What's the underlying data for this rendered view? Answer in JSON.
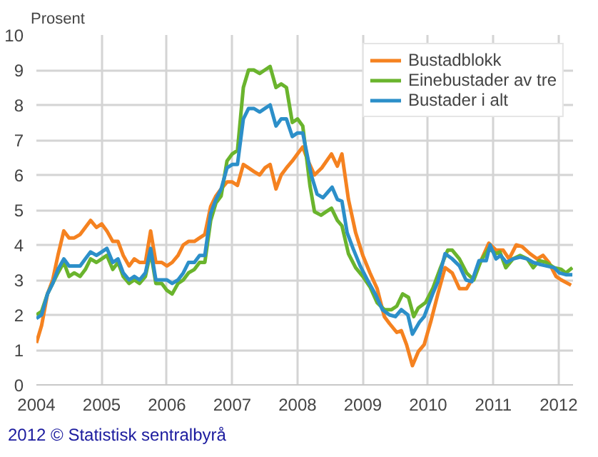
{
  "chart_data": {
    "type": "line",
    "ylabel": "Prosent",
    "annotations": [
      "2012 © Statistisk sentralbyrå"
    ],
    "xlim": [
      2004,
      2012.22
    ],
    "xticks": [
      2004,
      2005,
      2006,
      2007,
      2008,
      2009,
      2010,
      2011,
      2012
    ],
    "ylim": [
      0,
      10
    ],
    "yticks": [
      0,
      1,
      2,
      3,
      4,
      5,
      6,
      7,
      8,
      9,
      10
    ],
    "grid": true,
    "legend": "top right",
    "marker": "none",
    "line_style": "solid",
    "series": [
      {
        "name": "Bustadblokk",
        "color": "#f58220",
        "x": [
          2004,
          2004.08,
          2004.17,
          2004.25,
          2004.33,
          2004.42,
          2004.5,
          2004.58,
          2004.67,
          2004.75,
          2004.83,
          2004.92,
          2005,
          2005.08,
          2005.17,
          2005.25,
          2005.33,
          2005.42,
          2005.5,
          2005.58,
          2005.67,
          2005.75,
          2005.83,
          2005.92,
          2006,
          2006.08,
          2006.17,
          2006.25,
          2006.33,
          2006.42,
          2006.5,
          2006.58,
          2006.67,
          2006.75,
          2006.83,
          2006.92,
          2007,
          2007.08,
          2007.17,
          2007.25,
          2007.33,
          2007.42,
          2007.5,
          2007.58,
          2007.67,
          2007.75,
          2007.83,
          2007.92,
          2008,
          2008.08,
          2008.15,
          2008.26,
          2008.37,
          2008.52,
          2008.61,
          2008.68,
          2008.78,
          2008.89,
          2009,
          2009.11,
          2009.22,
          2009.33,
          2009.41,
          2009.52,
          2009.59,
          2009.67,
          2009.76,
          2009.85,
          2009.94,
          2010.04,
          2010.15,
          2010.26,
          2010.37,
          2010.48,
          2010.59,
          2010.7,
          2010.81,
          2010.93,
          2011.04,
          2011.15,
          2011.24,
          2011.35,
          2011.44,
          2011.56,
          2011.67,
          2011.76,
          2011.85,
          2011.96,
          2012.04,
          2012.19
        ],
        "values": [
          1.2,
          1.7,
          2.6,
          3.0,
          3.7,
          4.4,
          4.2,
          4.2,
          4.3,
          4.5,
          4.7,
          4.5,
          4.6,
          4.4,
          4.1,
          4.1,
          3.7,
          3.4,
          3.6,
          3.5,
          3.5,
          4.4,
          3.5,
          3.5,
          3.4,
          3.5,
          3.7,
          4.0,
          4.1,
          4.1,
          4.2,
          4.3,
          5.1,
          5.4,
          5.6,
          5.8,
          5.8,
          5.7,
          6.3,
          6.2,
          6.1,
          6.0,
          6.2,
          6.3,
          5.6,
          6.0,
          6.2,
          6.4,
          6.6,
          6.8,
          6.45,
          6.0,
          6.2,
          6.6,
          6.25,
          6.6,
          5.3,
          4.35,
          3.7,
          3.2,
          2.75,
          1.95,
          1.75,
          1.5,
          1.55,
          1.15,
          0.55,
          0.95,
          1.15,
          1.8,
          2.6,
          3.35,
          3.2,
          2.75,
          2.75,
          3.1,
          3.55,
          4.05,
          3.85,
          3.85,
          3.6,
          4.0,
          3.95,
          3.75,
          3.6,
          3.7,
          3.5,
          3.1,
          3.0,
          2.85
        ]
      },
      {
        "name": "Einebustader av tre",
        "color": "#6ab42d",
        "x": [
          2004,
          2004.08,
          2004.17,
          2004.25,
          2004.33,
          2004.42,
          2004.5,
          2004.58,
          2004.67,
          2004.75,
          2004.83,
          2004.92,
          2005,
          2005.08,
          2005.17,
          2005.25,
          2005.33,
          2005.42,
          2005.5,
          2005.58,
          2005.67,
          2005.75,
          2005.83,
          2005.92,
          2006,
          2006.08,
          2006.17,
          2006.25,
          2006.33,
          2006.42,
          2006.5,
          2006.58,
          2006.67,
          2006.75,
          2006.83,
          2006.92,
          2007,
          2007.08,
          2007.17,
          2007.25,
          2007.33,
          2007.42,
          2007.5,
          2007.58,
          2007.67,
          2007.75,
          2007.83,
          2007.92,
          2008,
          2008.08,
          2008.19,
          2008.26,
          2008.36,
          2008.44,
          2008.52,
          2008.61,
          2008.68,
          2008.78,
          2008.89,
          2009,
          2009.11,
          2009.22,
          2009.33,
          2009.44,
          2009.52,
          2009.61,
          2009.7,
          2009.78,
          2009.85,
          2009.96,
          2010.07,
          2010.19,
          2010.3,
          2010.37,
          2010.48,
          2010.59,
          2010.7,
          2010.81,
          2010.93,
          2011.04,
          2011.1,
          2011.19,
          2011.3,
          2011.41,
          2011.52,
          2011.61,
          2011.7,
          2011.81,
          2011.93,
          2012.04,
          2012.11,
          2012.21
        ],
        "values": [
          2.0,
          2.1,
          2.6,
          2.9,
          3.2,
          3.5,
          3.1,
          3.2,
          3.1,
          3.3,
          3.6,
          3.5,
          3.6,
          3.7,
          3.3,
          3.5,
          3.1,
          2.9,
          3.0,
          2.9,
          3.1,
          3.8,
          2.9,
          2.9,
          2.7,
          2.6,
          2.9,
          3.0,
          3.2,
          3.3,
          3.5,
          3.5,
          4.7,
          5.2,
          5.4,
          6.4,
          6.6,
          6.7,
          8.5,
          9.0,
          9.0,
          8.9,
          9.0,
          9.1,
          8.5,
          8.6,
          8.5,
          7.5,
          7.6,
          7.4,
          5.7,
          4.95,
          4.85,
          4.95,
          5.05,
          4.7,
          4.55,
          3.75,
          3.35,
          3.1,
          2.8,
          2.35,
          2.15,
          2.15,
          2.25,
          2.6,
          2.5,
          1.95,
          2.2,
          2.35,
          2.75,
          3.35,
          3.85,
          3.85,
          3.6,
          3.2,
          3.0,
          3.55,
          3.9,
          3.75,
          3.8,
          3.35,
          3.6,
          3.7,
          3.6,
          3.35,
          3.55,
          3.5,
          3.35,
          3.3,
          3.2,
          3.35
        ]
      },
      {
        "name": "Bustader i alt",
        "color": "#2c8fc9",
        "x": [
          2004,
          2004.08,
          2004.17,
          2004.25,
          2004.33,
          2004.42,
          2004.5,
          2004.58,
          2004.67,
          2004.75,
          2004.83,
          2004.92,
          2005,
          2005.08,
          2005.17,
          2005.25,
          2005.33,
          2005.42,
          2005.5,
          2005.58,
          2005.67,
          2005.75,
          2005.83,
          2005.92,
          2006,
          2006.08,
          2006.17,
          2006.25,
          2006.33,
          2006.42,
          2006.5,
          2006.58,
          2006.67,
          2006.75,
          2006.83,
          2006.92,
          2007,
          2007.08,
          2007.17,
          2007.25,
          2007.33,
          2007.42,
          2007.5,
          2007.58,
          2007.67,
          2007.75,
          2007.83,
          2007.92,
          2008,
          2008.08,
          2008.21,
          2008.3,
          2008.39,
          2008.46,
          2008.53,
          2008.61,
          2008.68,
          2008.76,
          2008.85,
          2008.96,
          2009.07,
          2009.19,
          2009.3,
          2009.41,
          2009.5,
          2009.59,
          2009.69,
          2009.76,
          2009.87,
          2009.94,
          2010.07,
          2010.15,
          2010.26,
          2010.37,
          2010.48,
          2010.58,
          2010.67,
          2010.78,
          2010.89,
          2010.95,
          2011.04,
          2011.11,
          2011.2,
          2011.3,
          2011.41,
          2011.52,
          2011.61,
          2011.7,
          2011.81,
          2011.93,
          2012.01,
          2012.11,
          2012.21
        ],
        "values": [
          1.9,
          2.0,
          2.6,
          2.9,
          3.3,
          3.6,
          3.4,
          3.4,
          3.4,
          3.6,
          3.8,
          3.7,
          3.8,
          3.9,
          3.5,
          3.6,
          3.2,
          3.0,
          3.1,
          3.0,
          3.2,
          3.9,
          3.0,
          3.0,
          3.0,
          2.9,
          3.0,
          3.2,
          3.5,
          3.5,
          3.7,
          3.7,
          4.9,
          5.3,
          5.6,
          6.2,
          6.3,
          6.3,
          7.6,
          7.9,
          7.9,
          7.8,
          7.9,
          8.0,
          7.4,
          7.6,
          7.6,
          7.1,
          7.2,
          7.2,
          6.0,
          5.45,
          5.35,
          5.5,
          5.65,
          5.3,
          5.25,
          4.35,
          3.9,
          3.4,
          3.0,
          2.6,
          2.15,
          2.0,
          1.95,
          2.15,
          2.0,
          1.45,
          1.8,
          1.95,
          2.6,
          2.95,
          3.75,
          3.6,
          3.4,
          3.0,
          2.95,
          3.55,
          3.55,
          4.0,
          3.6,
          3.7,
          3.5,
          3.6,
          3.65,
          3.6,
          3.5,
          3.45,
          3.4,
          3.35,
          3.2,
          3.15,
          3.15
        ]
      }
    ]
  }
}
